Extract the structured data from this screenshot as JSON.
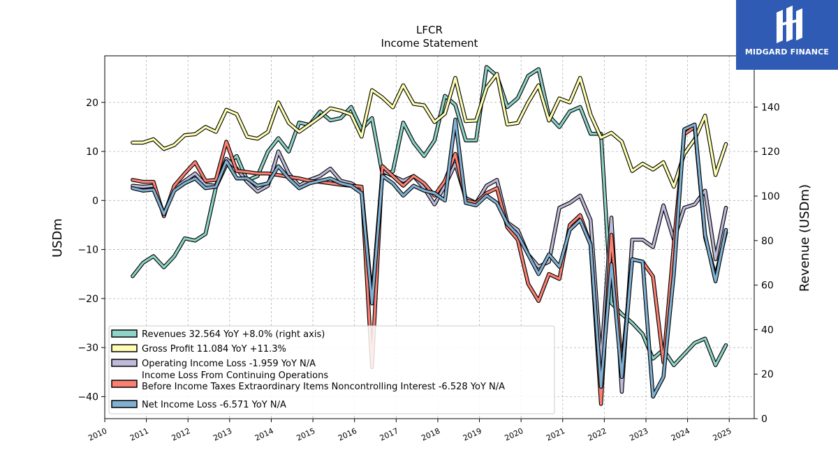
{
  "brand": {
    "logo_text": "MIDGARD FINANCE",
    "background": "#2f5bb5",
    "icon": "midgard-logo-icon"
  },
  "chart_data": {
    "type": "line",
    "title": "LFCR",
    "subtitle": "Income Statement",
    "ylabel": "USDm",
    "y2label": "Revenue (USDm)",
    "ylim": [
      -44.5,
      29.5
    ],
    "y2lim": [
      0,
      163
    ],
    "xlim": [
      2010.0,
      2025.6
    ],
    "yticks": [
      20,
      10,
      0,
      -10,
      -20,
      -30,
      -40
    ],
    "y2ticks": [
      0,
      20,
      40,
      60,
      80,
      100,
      120,
      140
    ],
    "xticks": [
      "2010",
      "2011",
      "2012",
      "2013",
      "2014",
      "2015",
      "2016",
      "2017",
      "2018",
      "2019",
      "2020",
      "2021",
      "2022",
      "2023",
      "2024",
      "2025"
    ],
    "grid": true,
    "legend_position": "lower-left",
    "series": [
      {
        "name": "Revenues  32.564 YoY +8.0% (right axis)",
        "color": "#8dd3c7",
        "axis": "right",
        "x": [
          2010.67,
          2010.92,
          2011.17,
          2011.42,
          2011.67,
          2011.92,
          2012.17,
          2012.42,
          2012.67,
          2012.92,
          2013.17,
          2013.42,
          2013.67,
          2013.92,
          2014.17,
          2014.42,
          2014.67,
          2014.92,
          2015.17,
          2015.42,
          2015.67,
          2015.92,
          2016.17,
          2016.42,
          2016.67,
          2016.92,
          2017.17,
          2017.42,
          2017.67,
          2017.92,
          2018.17,
          2018.42,
          2018.67,
          2018.92,
          2019.17,
          2019.42,
          2019.67,
          2019.92,
          2020.17,
          2020.42,
          2020.67,
          2020.92,
          2021.17,
          2021.42,
          2021.67,
          2021.92,
          2022.17,
          2022.42,
          2022.67,
          2022.92,
          2023.17,
          2023.42,
          2023.67,
          2023.92,
          2024.17,
          2024.42,
          2024.67,
          2024.92
        ],
        "values": [
          64,
          70,
          73,
          68,
          73,
          81,
          80,
          83,
          104,
          114,
          118,
          107,
          109,
          120,
          126,
          120,
          133,
          132,
          138,
          134,
          135,
          140,
          130,
          135,
          110,
          111,
          133,
          124,
          118,
          125,
          145,
          141,
          125,
          125,
          158,
          154,
          140,
          144,
          154,
          157,
          136,
          131,
          138,
          140,
          128,
          128,
          52,
          47,
          43,
          38,
          27,
          31,
          24,
          29,
          34,
          36,
          24,
          33
        ]
      },
      {
        "name": "Gross Profit  11.084 YoY +11.3%",
        "color": "#ffffb3",
        "axis": "left",
        "x": [
          2010.67,
          2010.92,
          2011.17,
          2011.42,
          2011.67,
          2011.92,
          2012.17,
          2012.42,
          2012.67,
          2012.92,
          2013.17,
          2013.42,
          2013.67,
          2013.92,
          2014.17,
          2014.42,
          2014.67,
          2014.92,
          2015.17,
          2015.42,
          2015.67,
          2015.92,
          2016.17,
          2016.42,
          2016.67,
          2016.92,
          2017.17,
          2017.42,
          2017.67,
          2017.92,
          2018.17,
          2018.42,
          2018.67,
          2018.92,
          2019.17,
          2019.42,
          2019.67,
          2019.92,
          2020.17,
          2020.42,
          2020.67,
          2020.92,
          2021.17,
          2021.42,
          2021.67,
          2021.92,
          2022.17,
          2022.42,
          2022.67,
          2022.92,
          2023.17,
          2023.42,
          2023.67,
          2023.92,
          2024.17,
          2024.42,
          2024.67,
          2024.92
        ],
        "values": [
          11.8,
          11.8,
          12.5,
          10.5,
          11.3,
          13.3,
          13.5,
          15.0,
          14.0,
          18.5,
          17.6,
          13.0,
          12.6,
          14.0,
          20.0,
          15.8,
          14.0,
          15.5,
          17.0,
          18.8,
          18.3,
          17.5,
          13.0,
          22.5,
          21.0,
          19.0,
          23.5,
          19.7,
          19.4,
          16.0,
          17.7,
          25.0,
          16.2,
          16.3,
          23.0,
          25.8,
          15.5,
          15.8,
          20.0,
          23.5,
          16.3,
          20.8,
          20.0,
          25.0,
          17.5,
          12.8,
          13.8,
          12.0,
          6.0,
          7.5,
          6.3,
          7.8,
          2.8,
          9.5,
          12.5,
          17.3,
          5.2,
          11.5
        ]
      },
      {
        "name": "Operating Income Loss  -1.959 YoY N/A",
        "color": "#bebada",
        "axis": "left",
        "x": [
          2010.67,
          2010.92,
          2011.17,
          2011.42,
          2011.67,
          2011.92,
          2012.17,
          2012.42,
          2012.67,
          2012.92,
          2013.17,
          2013.42,
          2013.67,
          2013.92,
          2014.17,
          2014.42,
          2014.67,
          2014.92,
          2015.17,
          2015.42,
          2015.67,
          2015.92,
          2016.17,
          2016.42,
          2016.67,
          2016.92,
          2017.17,
          2017.42,
          2017.67,
          2017.92,
          2018.17,
          2018.42,
          2018.67,
          2018.92,
          2019.17,
          2019.42,
          2019.67,
          2019.92,
          2020.17,
          2020.42,
          2020.67,
          2020.92,
          2021.17,
          2021.42,
          2021.67,
          2021.92,
          2022.17,
          2022.42,
          2022.67,
          2022.92,
          2023.17,
          2023.42,
          2023.67,
          2023.92,
          2024.17,
          2024.42,
          2024.67,
          2024.92
        ],
        "values": [
          3.0,
          2.8,
          3.0,
          -2.8,
          2.5,
          4.0,
          5.5,
          3.2,
          3.0,
          8.5,
          6.5,
          3.8,
          1.8,
          3.0,
          10.0,
          5.5,
          3.0,
          4.2,
          5.0,
          6.5,
          4.0,
          3.5,
          2.2,
          -20.0,
          6.0,
          5.0,
          4.0,
          5.0,
          2.5,
          -0.8,
          3.0,
          7.5,
          0.5,
          -0.5,
          3.0,
          4.2,
          -4.5,
          -6.0,
          -11.0,
          -13.5,
          -12.5,
          -1.5,
          -0.5,
          1.0,
          -4.0,
          -33.0,
          -3.5,
          -39.0,
          -8.0,
          -8.0,
          -9.5,
          -1.0,
          -8.0,
          -1.5,
          -0.8,
          2.0,
          -12.0,
          -1.5
        ]
      },
      {
        "name": "Income Loss From Continuing Operations\nBefore Income Taxes Extraordinary Items Noncontrolling Interest  -6.528 YoY N/A",
        "color": "#fb8072",
        "axis": "left",
        "x": [
          2010.67,
          2010.92,
          2011.17,
          2011.42,
          2011.67,
          2011.92,
          2012.17,
          2012.42,
          2012.67,
          2012.92,
          2013.17,
          2013.42,
          2013.67,
          2013.92,
          2014.17,
          2014.42,
          2014.67,
          2014.92,
          2015.17,
          2015.42,
          2015.67,
          2015.92,
          2016.17,
          2016.42,
          2016.67,
          2016.92,
          2017.17,
          2017.42,
          2017.67,
          2017.92,
          2018.17,
          2018.42,
          2018.67,
          2018.92,
          2019.17,
          2019.42,
          2019.67,
          2019.92,
          2020.17,
          2020.42,
          2020.67,
          2020.92,
          2021.17,
          2021.42,
          2021.67,
          2021.92,
          2022.17,
          2022.42,
          2022.67,
          2022.92,
          2023.17,
          2023.42,
          2023.67,
          2023.92,
          2024.17,
          2024.42,
          2024.67,
          2024.92
        ],
        "values": [
          4.2,
          3.8,
          3.8,
          -3.2,
          3.0,
          5.5,
          7.8,
          4.0,
          4.2,
          12.0,
          6.0,
          5.8,
          5.5,
          5.5,
          5.2,
          4.8,
          4.5,
          4.0,
          3.8,
          3.5,
          3.2,
          3.0,
          2.8,
          -34.0,
          7.0,
          5.0,
          3.0,
          5.0,
          3.5,
          1.0,
          4.0,
          9.5,
          0.0,
          -0.5,
          1.5,
          2.5,
          -5.5,
          -8.0,
          -17.0,
          -20.5,
          -15.0,
          -16.0,
          -5.0,
          -3.0,
          -9.0,
          -41.5,
          -7.0,
          -34.0,
          -12.0,
          -12.5,
          -15.5,
          -33.0,
          -9.0,
          13.5,
          15.0,
          -7.5,
          -15.5,
          -6.5
        ]
      },
      {
        "name": "Net Income Loss  -6.571 YoY N/A",
        "color": "#80b1d3",
        "axis": "left",
        "x": [
          2010.67,
          2010.92,
          2011.17,
          2011.42,
          2011.67,
          2011.92,
          2012.17,
          2012.42,
          2012.67,
          2012.92,
          2013.17,
          2013.42,
          2013.67,
          2013.92,
          2014.17,
          2014.42,
          2014.67,
          2014.92,
          2015.17,
          2015.42,
          2015.67,
          2015.92,
          2016.17,
          2016.42,
          2016.67,
          2016.92,
          2017.17,
          2017.42,
          2017.67,
          2017.92,
          2018.17,
          2018.42,
          2018.67,
          2018.92,
          2019.17,
          2019.42,
          2019.67,
          2019.92,
          2020.17,
          2020.42,
          2020.67,
          2020.92,
          2021.17,
          2021.42,
          2021.67,
          2021.92,
          2022.17,
          2022.42,
          2022.67,
          2022.92,
          2023.17,
          2023.42,
          2023.67,
          2023.92,
          2024.17,
          2024.42,
          2024.67,
          2024.92
        ],
        "values": [
          2.5,
          2.0,
          2.2,
          -2.8,
          2.0,
          3.5,
          4.5,
          2.5,
          2.8,
          8.0,
          4.5,
          4.5,
          3.0,
          3.5,
          7.0,
          4.5,
          2.5,
          3.5,
          4.0,
          4.5,
          3.5,
          3.0,
          1.5,
          -21.0,
          5.0,
          3.5,
          1.0,
          3.0,
          2.0,
          1.5,
          0.0,
          16.5,
          -0.5,
          -1.0,
          1.0,
          -0.5,
          -4.8,
          -7.0,
          -11.0,
          -15.0,
          -11.0,
          -13.5,
          -6.0,
          -4.0,
          -9.0,
          -38.0,
          -13.0,
          -36.0,
          -12.0,
          -12.5,
          -40.0,
          -36.0,
          -15.0,
          14.5,
          15.5,
          -7.0,
          -16.5,
          -6.0
        ]
      }
    ]
  }
}
